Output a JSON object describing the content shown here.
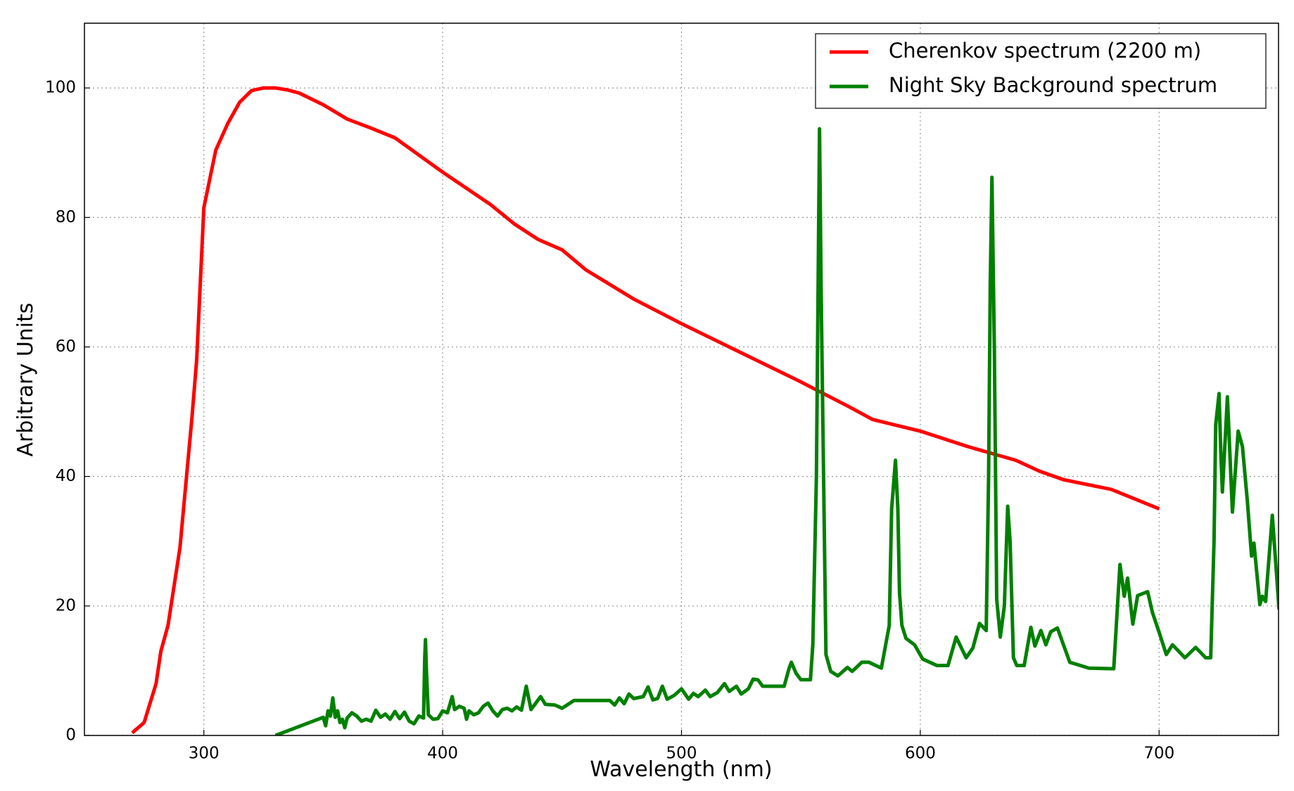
{
  "chart_data": {
    "type": "line",
    "xlabel": "Wavelength (nm)",
    "ylabel": "Arbitrary Units",
    "xlim": [
      250,
      750
    ],
    "ylim": [
      0,
      110
    ],
    "xticks": [
      300,
      400,
      500,
      600,
      700
    ],
    "yticks": [
      0,
      20,
      40,
      60,
      80,
      100
    ],
    "grid": true,
    "legend": "upper right",
    "series": [
      {
        "name": "Cherenkov spectrum (2200 m)",
        "color": "#ff0000",
        "x": [
          270,
          275,
          280,
          282,
          285,
          290,
          295,
          297,
          300,
          305,
          310,
          315,
          320,
          325,
          330,
          335,
          340,
          350,
          360,
          370,
          380,
          400,
          420,
          430,
          440,
          450,
          460,
          480,
          500,
          520,
          530,
          550,
          570,
          580,
          600,
          620,
          640,
          650,
          660,
          680,
          700
        ],
        "values": [
          0.4,
          2,
          8,
          13,
          17,
          29,
          49,
          58,
          81.5,
          90.4,
          94.5,
          97.8,
          99.6,
          100,
          100,
          99.7,
          99.2,
          97.4,
          95.2,
          93.8,
          92.3,
          87,
          82,
          79,
          76.6,
          75,
          71.9,
          67.4,
          63.6,
          60,
          58.2,
          54.6,
          50.8,
          48.8,
          47,
          44.6,
          42.5,
          40.8,
          39.5,
          38,
          35
        ]
      },
      {
        "name": "Night Sky Background spectrum",
        "color": "#008000",
        "x": [
          330,
          350,
          351,
          352,
          353,
          354,
          355,
          356,
          357,
          358,
          359,
          360,
          362,
          364,
          366,
          368,
          370,
          372,
          374,
          376,
          378,
          380,
          382,
          384,
          386,
          388,
          390,
          392,
          392.5,
          392.8,
          393.2,
          394,
          396,
          398,
          400,
          402,
          404,
          405,
          407,
          409,
          410,
          411,
          413,
          415,
          417,
          419,
          421,
          423,
          425,
          427,
          429,
          431,
          433,
          435,
          437,
          439,
          441,
          443,
          447,
          450,
          455,
          470,
          472,
          474,
          476,
          478,
          480,
          484,
          486,
          488,
          490,
          492,
          494,
          497,
          500,
          503,
          505,
          507,
          510,
          512,
          515,
          518,
          520,
          523,
          525,
          528,
          530,
          532,
          534,
          543,
          545,
          546,
          548,
          550,
          554,
          555,
          556.5,
          557.8,
          558.5,
          559.5,
          560.5,
          562.5,
          565.5,
          569.5,
          571.5,
          575.5,
          578.5,
          583.7,
          587,
          588,
          589.6,
          590.6,
          591.3,
          592.3,
          594,
          597.6,
          601,
          607,
          611.6,
          615,
          619.2,
          622,
          624.8,
          627.6,
          628.6,
          629.3,
          630,
          631,
          632,
          633.5,
          635.2,
          636.6,
          637.6,
          639,
          640.4,
          643.5,
          646.3,
          648,
          650.5,
          652.6,
          654.6,
          657.4,
          662.6,
          670.6,
          681,
          683.6,
          685.4,
          686.8,
          689,
          691,
          695.2,
          697.2,
          700.3,
          703,
          705.6,
          710.8,
          715.3,
          719.5,
          721.6,
          723,
          723.7,
          725.1,
          725.8,
          726.5,
          728.6,
          730.7,
          733.1,
          734.9,
          737,
          738.7,
          739.7,
          742.2,
          743.2,
          744.6,
          747.4,
          750.2,
          751.6
        ],
        "values": [
          0,
          2.8,
          1.5,
          3.8,
          3,
          5.8,
          2.8,
          3.8,
          2,
          2.5,
          1.2,
          2.7,
          3.5,
          3,
          2.2,
          2.5,
          2.2,
          3.9,
          2.8,
          3.3,
          2.5,
          3.7,
          2.6,
          3.6,
          2.2,
          1.8,
          3,
          2.7,
          12,
          14.8,
          10,
          3.2,
          2.5,
          2.6,
          3.8,
          3.5,
          6,
          4,
          4.5,
          4.2,
          2.5,
          3.8,
          3.2,
          3.5,
          4.5,
          5,
          3.8,
          3,
          4,
          4.2,
          3.8,
          4.4,
          3.9,
          7.6,
          4,
          5,
          6,
          4.8,
          4.7,
          4.2,
          5.4,
          5.4,
          4.7,
          5.8,
          4.9,
          6.4,
          5.7,
          6,
          7.5,
          5.5,
          5.7,
          7.6,
          5.6,
          6.2,
          7.2,
          5.6,
          6.5,
          6,
          7,
          6,
          6.6,
          8,
          6.8,
          7.6,
          6.4,
          7.2,
          8.7,
          8.6,
          7.6,
          7.6,
          10.3,
          11.3,
          9.6,
          8.6,
          8.6,
          14,
          40,
          93.7,
          68,
          40,
          12.5,
          9.9,
          9.2,
          10.5,
          9.9,
          11.3,
          11.3,
          10.4,
          17,
          35,
          42.5,
          35,
          22,
          17,
          15,
          14,
          11.8,
          10.8,
          10.8,
          15.2,
          12,
          13.5,
          17.3,
          16.2,
          40,
          70,
          86.2,
          60,
          21,
          15.2,
          20,
          35.4,
          30,
          12,
          10.8,
          10.8,
          16.7,
          13.8,
          16.2,
          14,
          16,
          16.6,
          11.3,
          10.4,
          10.3,
          26.4,
          21.5,
          24.3,
          17.2,
          21.6,
          22.2,
          19,
          15.6,
          12.5,
          14,
          12,
          13.6,
          12,
          12,
          30,
          48,
          52.8,
          44,
          37.6,
          52.3,
          34.5,
          47,
          44.6,
          36,
          27.7,
          29.7,
          20.2,
          21.5,
          20.7,
          34,
          19.6,
          30
        ]
      }
    ]
  }
}
